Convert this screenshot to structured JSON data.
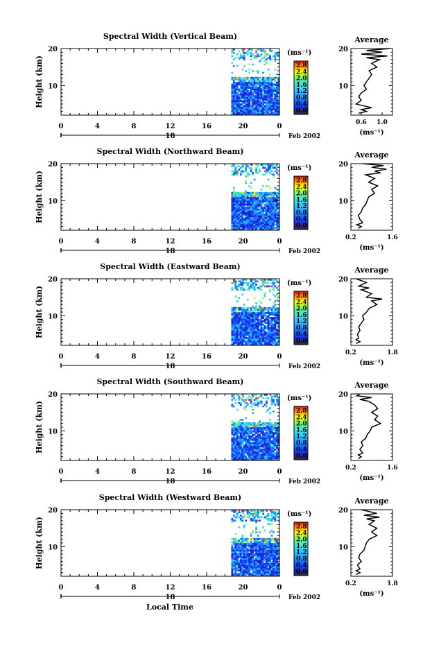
{
  "panels": [
    {
      "title": "Spectral Width (Vertical Beam)",
      "ylabel": "Height (km)",
      "yticks": [
        "20",
        "10"
      ],
      "xticks": [
        "0",
        "4",
        "8",
        "12",
        "16",
        "20",
        "0"
      ],
      "day": "18",
      "month_year": "Feb 2002",
      "cbar_unit": "(ms⁻¹)",
      "cbar_ticks": [
        "2.8",
        "2.4",
        "2.0",
        "1.6",
        "1.2",
        "0.8",
        "0.4",
        "0.0"
      ],
      "avg_title": "Average",
      "avg_xticks": [
        "0.6",
        "1.0"
      ],
      "avg_xlabel": "(ms⁻¹)",
      "avg_yticks": [
        "20",
        "10"
      ],
      "avg_range": [
        0.4,
        1.2
      ],
      "profile": [
        [
          0.55,
          2.5
        ],
        [
          0.7,
          3
        ],
        [
          0.6,
          3.5
        ],
        [
          0.8,
          4
        ],
        [
          0.65,
          4.5
        ],
        [
          0.5,
          5
        ],
        [
          0.6,
          6
        ],
        [
          0.55,
          7
        ],
        [
          0.6,
          8
        ],
        [
          0.7,
          9
        ],
        [
          0.65,
          10
        ],
        [
          0.7,
          11
        ],
        [
          0.75,
          12
        ],
        [
          0.8,
          13
        ],
        [
          0.75,
          14
        ],
        [
          0.9,
          15
        ],
        [
          0.8,
          16
        ],
        [
          0.95,
          17
        ],
        [
          0.7,
          17.5
        ],
        [
          1.1,
          18
        ],
        [
          0.6,
          18.5
        ],
        [
          1.0,
          19
        ],
        [
          0.7,
          19.5
        ],
        [
          1.15,
          20
        ]
      ]
    },
    {
      "title": "Spectral Width (Northward Beam)",
      "ylabel": "Height (km)",
      "yticks": [
        "20",
        "10"
      ],
      "xticks": [
        "0",
        "4",
        "8",
        "12",
        "16",
        "20",
        "0"
      ],
      "day": "18",
      "month_year": "Feb 2002",
      "cbar_unit": "(ms⁻¹)",
      "cbar_ticks": [
        "2.8",
        "2.4",
        "2.0",
        "1.6",
        "1.2",
        "0.8",
        "0.4",
        "0.0"
      ],
      "avg_title": "Average",
      "avg_xticks": [
        "0.2",
        "1.6"
      ],
      "avg_xlabel": "(ms⁻¹)",
      "avg_yticks": [
        "20",
        "10"
      ],
      "avg_range": [
        0.2,
        1.6
      ],
      "profile": [
        [
          0.45,
          2.5
        ],
        [
          0.55,
          3
        ],
        [
          0.4,
          3.5
        ],
        [
          0.6,
          4
        ],
        [
          0.5,
          5
        ],
        [
          0.45,
          6
        ],
        [
          0.55,
          7
        ],
        [
          0.6,
          8
        ],
        [
          0.7,
          9
        ],
        [
          0.75,
          10
        ],
        [
          0.8,
          11
        ],
        [
          1.0,
          12
        ],
        [
          0.9,
          13
        ],
        [
          1.1,
          14
        ],
        [
          0.8,
          15
        ],
        [
          1.0,
          16
        ],
        [
          0.7,
          17
        ],
        [
          1.2,
          17.5
        ],
        [
          1.0,
          18
        ],
        [
          1.4,
          18.5
        ],
        [
          0.9,
          19
        ],
        [
          1.3,
          19.5
        ],
        [
          0.6,
          20
        ]
      ]
    },
    {
      "title": "Spectral Width (Eastward Beam)",
      "ylabel": "Height (km)",
      "yticks": [
        "20",
        "10"
      ],
      "xticks": [
        "0",
        "4",
        "8",
        "12",
        "16",
        "20",
        "0"
      ],
      "day": "18",
      "month_year": "Feb 2002",
      "cbar_unit": "(ms⁻¹)",
      "cbar_ticks": [
        "2.8",
        "2.4",
        "2.0",
        "1.6",
        "1.2",
        "0.8",
        "0.4",
        "0.0"
      ],
      "avg_title": "Average",
      "avg_xticks": [
        "0.2",
        "1.8"
      ],
      "avg_xlabel": "(ms⁻¹)",
      "avg_yticks": [
        "20",
        "10"
      ],
      "avg_range": [
        0.2,
        1.8
      ],
      "profile": [
        [
          0.4,
          2.5
        ],
        [
          0.55,
          3
        ],
        [
          0.4,
          3.5
        ],
        [
          0.5,
          4
        ],
        [
          0.45,
          5
        ],
        [
          0.55,
          6
        ],
        [
          0.5,
          7
        ],
        [
          0.6,
          8
        ],
        [
          0.7,
          9
        ],
        [
          0.65,
          10
        ],
        [
          0.8,
          11
        ],
        [
          0.9,
          12
        ],
        [
          1.2,
          13
        ],
        [
          1.0,
          14
        ],
        [
          1.4,
          14.5
        ],
        [
          0.8,
          15
        ],
        [
          1.0,
          16
        ],
        [
          0.6,
          17
        ],
        [
          0.9,
          17.5
        ],
        [
          0.5,
          18
        ],
        [
          0.8,
          19
        ],
        [
          0.4,
          20
        ]
      ]
    },
    {
      "title": "Spectral Width (Southward Beam)",
      "ylabel": "Height (km)",
      "yticks": [
        "20",
        "10"
      ],
      "xticks": [
        "0",
        "4",
        "8",
        "12",
        "16",
        "20",
        "0"
      ],
      "day": "18",
      "month_year": "Feb 2002",
      "cbar_unit": "(ms⁻¹)",
      "cbar_ticks": [
        "2.8",
        "2.4",
        "2.0",
        "1.6",
        "1.2",
        "0.8",
        "0.4",
        "0.0"
      ],
      "avg_title": "Average",
      "avg_xticks": [
        "0.2",
        "1.6"
      ],
      "avg_xlabel": "(ms⁻¹)",
      "avg_yticks": [
        "20",
        "10"
      ],
      "avg_range": [
        0.2,
        1.6
      ],
      "profile": [
        [
          0.45,
          2.5
        ],
        [
          0.55,
          3
        ],
        [
          0.45,
          3.5
        ],
        [
          0.6,
          4
        ],
        [
          0.5,
          5
        ],
        [
          0.6,
          6
        ],
        [
          0.55,
          7
        ],
        [
          0.7,
          8
        ],
        [
          0.75,
          9
        ],
        [
          0.85,
          10
        ],
        [
          0.9,
          11
        ],
        [
          1.2,
          12
        ],
        [
          1.0,
          13
        ],
        [
          1.1,
          14
        ],
        [
          0.9,
          15
        ],
        [
          1.1,
          16
        ],
        [
          1.0,
          17
        ],
        [
          0.8,
          18
        ],
        [
          0.5,
          18.5
        ],
        [
          0.9,
          19
        ],
        [
          0.4,
          19.5
        ],
        [
          0.5,
          20
        ]
      ]
    },
    {
      "title": "Spectral Width (Westward Beam)",
      "ylabel": "Height (km)",
      "yticks": [
        "20",
        "10"
      ],
      "xticks": [
        "0",
        "4",
        "8",
        "12",
        "16",
        "20",
        "0"
      ],
      "day": "18",
      "month_year": "Feb 2002",
      "cbar_unit": "(ms⁻¹)",
      "cbar_ticks": [
        "2.8",
        "2.4",
        "2.0",
        "1.6",
        "1.2",
        "0.8",
        "0.4",
        "0.0"
      ],
      "avg_title": "Average",
      "avg_xticks": [
        "0.2",
        "1.8"
      ],
      "avg_xlabel": "(ms⁻¹)",
      "avg_yticks": [
        "20",
        "10"
      ],
      "avg_range": [
        0.2,
        1.8
      ],
      "profile": [
        [
          0.4,
          2.5
        ],
        [
          0.55,
          3
        ],
        [
          0.4,
          3.5
        ],
        [
          0.55,
          4
        ],
        [
          0.45,
          5
        ],
        [
          0.6,
          6
        ],
        [
          0.5,
          7
        ],
        [
          0.55,
          8
        ],
        [
          0.7,
          9
        ],
        [
          0.75,
          10
        ],
        [
          0.8,
          11
        ],
        [
          0.9,
          12
        ],
        [
          1.2,
          13
        ],
        [
          1.0,
          14
        ],
        [
          1.2,
          15
        ],
        [
          0.9,
          16
        ],
        [
          1.1,
          17
        ],
        [
          0.8,
          17.5
        ],
        [
          1.3,
          18
        ],
        [
          0.7,
          18.5
        ],
        [
          1.2,
          19
        ],
        [
          0.6,
          20
        ]
      ]
    }
  ],
  "xlabel": "Local Time",
  "chart_data": {
    "type": "heatmap",
    "title": "Spectral Width",
    "xlabel": "Local Time",
    "ylabel": "Height (km)",
    "xlim": [
      0,
      24
    ],
    "ylim": [
      2,
      20
    ],
    "colorbar": {
      "label": "ms⁻¹",
      "range": [
        0.0,
        3.0
      ],
      "ticks": [
        0.0,
        0.4,
        0.8,
        1.2,
        1.6,
        2.0,
        2.4,
        2.8
      ]
    },
    "data_period_local_time": [
      18.7,
      24
    ],
    "date": "18 Feb 2002",
    "beams": [
      "Vertical",
      "Northward",
      "Eastward",
      "Southward",
      "Westward"
    ],
    "colors": [
      "#2a2a55",
      "#2020d0",
      "#1050ff",
      "#2090ff",
      "#30c0ff",
      "#40e0e0",
      "#50f0a0",
      "#a0ff40",
      "#ffff00",
      "#ffb000",
      "#ff6000",
      "#e01010"
    ]
  }
}
